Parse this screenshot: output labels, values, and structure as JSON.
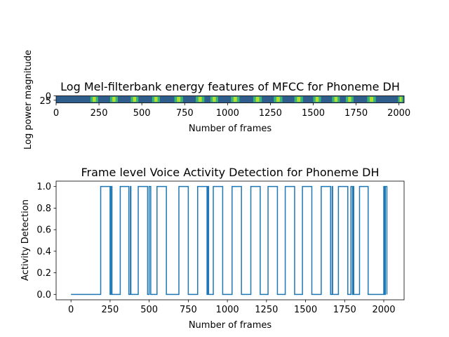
{
  "chart_data": [
    {
      "type": "heatmap",
      "title": "Log Mel-filterbank energy features of MFCC for Phoneme DH",
      "xlabel": "Number of frames",
      "ylabel": "Log power magnitude",
      "xlim": [
        0,
        2030
      ],
      "ylim": [
        0,
        40
      ],
      "xticks": [
        0,
        250,
        500,
        750,
        1000,
        1250,
        1500,
        1750,
        2000
      ],
      "yticks": [
        0,
        25
      ],
      "colormap": "viridis",
      "bright_bands": [
        {
          "start": 200,
          "end": 245
        },
        {
          "start": 315,
          "end": 360
        },
        {
          "start": 435,
          "end": 480
        },
        {
          "start": 560,
          "end": 605
        },
        {
          "start": 690,
          "end": 740
        },
        {
          "start": 815,
          "end": 865
        },
        {
          "start": 900,
          "end": 945
        },
        {
          "start": 1020,
          "end": 1070
        },
        {
          "start": 1150,
          "end": 1200
        },
        {
          "start": 1270,
          "end": 1320
        },
        {
          "start": 1390,
          "end": 1440
        },
        {
          "start": 1500,
          "end": 1545
        },
        {
          "start": 1610,
          "end": 1655
        },
        {
          "start": 1690,
          "end": 1735
        },
        {
          "start": 1815,
          "end": 1865
        },
        {
          "start": 1995,
          "end": 2025
        }
      ]
    },
    {
      "type": "line",
      "title": "Frame level Voice Activity Detection for Phoneme DH",
      "xlabel": "Number of frames",
      "ylabel": "Activity Detection",
      "xlim": [
        -95,
        2130
      ],
      "ylim": [
        -0.05,
        1.05
      ],
      "xticks": [
        0,
        250,
        500,
        750,
        1000,
        1250,
        1500,
        1750,
        2000
      ],
      "yticks": [
        0.0,
        0.2,
        0.4,
        0.6,
        0.8,
        1.0
      ],
      "ytick_labels": [
        "0.0",
        "0.2",
        "0.4",
        "0.6",
        "0.8",
        "1.0"
      ],
      "color": "#1f77b4",
      "x_start": 0,
      "x_end": 2020,
      "active_intervals": [
        [
          190,
          250
        ],
        [
          255,
          262
        ],
        [
          315,
          370
        ],
        [
          380,
          383
        ],
        [
          430,
          490
        ],
        [
          500,
          510
        ],
        [
          550,
          610
        ],
        [
          690,
          750
        ],
        [
          810,
          870
        ],
        [
          875,
          880
        ],
        [
          910,
          970
        ],
        [
          1030,
          1090
        ],
        [
          1150,
          1210
        ],
        [
          1260,
          1320
        ],
        [
          1370,
          1430
        ],
        [
          1480,
          1540
        ],
        [
          1600,
          1660
        ],
        [
          1670,
          1673
        ],
        [
          1710,
          1770
        ],
        [
          1790,
          1800
        ],
        [
          1805,
          1808
        ],
        [
          1845,
          1900
        ],
        [
          2000,
          2005
        ],
        [
          2010,
          2020
        ]
      ]
    }
  ]
}
